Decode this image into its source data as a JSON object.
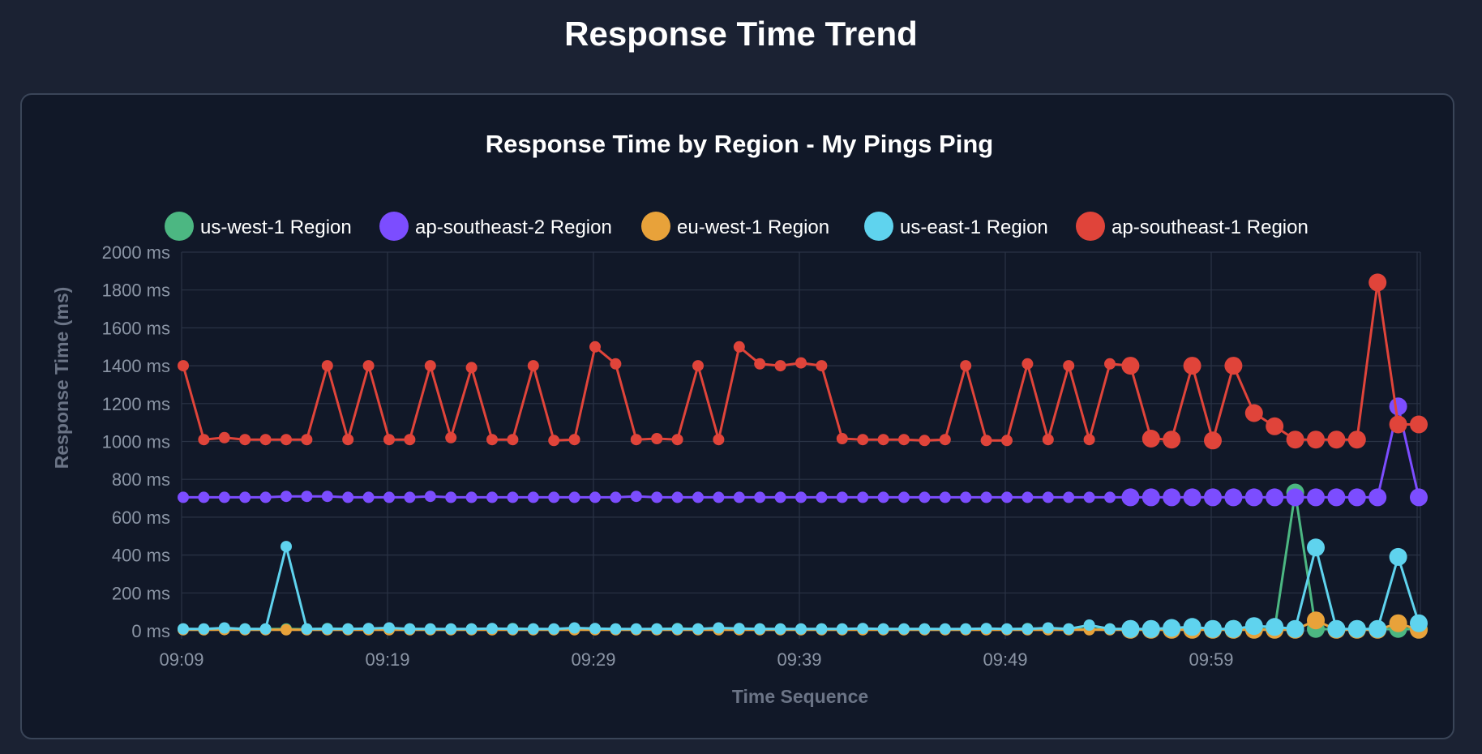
{
  "page": {
    "title": "Response Time Trend"
  },
  "chart_data": {
    "type": "line",
    "title": "Response Time by Region - My Pings Ping",
    "xlabel": "Time Sequence",
    "ylabel": "Response Time (ms)",
    "ylim": [
      0,
      2000
    ],
    "y_unit": "ms",
    "y_ticks": [
      0,
      200,
      400,
      600,
      800,
      1000,
      1200,
      1400,
      1600,
      1800,
      2000
    ],
    "y_tick_labels": [
      "0 ms",
      "200 ms",
      "400 ms",
      "600 ms",
      "800 ms",
      "1000 ms",
      "1200 ms",
      "1400 ms",
      "1600 ms",
      "1800 ms",
      "2000 ms"
    ],
    "x_tick_labels": [
      "09:09",
      "09:19",
      "09:29",
      "09:39",
      "09:49",
      "09:59"
    ],
    "grid": true,
    "legend": "top",
    "points_per_series": 61,
    "series": [
      {
        "name": "us-west-1 Region",
        "color": "#4cb782",
        "values": [
          10,
          8,
          8,
          10,
          9,
          10,
          8,
          12,
          10,
          9,
          8,
          10,
          9,
          8,
          10,
          9,
          12,
          10,
          8,
          9,
          10,
          9,
          8,
          10,
          12,
          10,
          9,
          8,
          10,
          9,
          8,
          10,
          9,
          8,
          10,
          9,
          10,
          8,
          9,
          10,
          8,
          12,
          10,
          9,
          8,
          10,
          9,
          8,
          10,
          9,
          8,
          10,
          9,
          8,
          730,
          10,
          8,
          9,
          8,
          10,
          8
        ]
      },
      {
        "name": "ap-southeast-2 Region",
        "color": "#7c4dff",
        "values": [
          705,
          705,
          705,
          705,
          705,
          710,
          710,
          710,
          705,
          705,
          705,
          705,
          710,
          705,
          705,
          705,
          705,
          705,
          705,
          705,
          705,
          705,
          710,
          705,
          705,
          705,
          705,
          705,
          705,
          705,
          705,
          705,
          705,
          705,
          705,
          705,
          705,
          705,
          705,
          705,
          705,
          705,
          705,
          705,
          705,
          705,
          705,
          705,
          705,
          705,
          705,
          705,
          705,
          705,
          705,
          705,
          705,
          705,
          705,
          1185,
          705
        ]
      },
      {
        "name": "eu-west-1 Region",
        "color": "#e8a23a",
        "values": [
          5,
          5,
          6,
          5,
          5,
          5,
          5,
          5,
          5,
          5,
          5,
          5,
          5,
          5,
          5,
          5,
          5,
          5,
          5,
          5,
          5,
          5,
          5,
          5,
          5,
          5,
          5,
          5,
          5,
          5,
          5,
          5,
          5,
          5,
          5,
          5,
          5,
          5,
          5,
          5,
          5,
          5,
          5,
          5,
          5,
          5,
          5,
          5,
          5,
          5,
          5,
          5,
          5,
          5,
          5,
          55,
          5,
          5,
          5,
          40,
          5
        ]
      },
      {
        "name": "us-east-1 Region",
        "color": "#5fd3ee",
        "values": [
          10,
          10,
          15,
          10,
          10,
          445,
          10,
          10,
          10,
          12,
          15,
          10,
          10,
          10,
          10,
          12,
          10,
          10,
          10,
          15,
          12,
          10,
          10,
          10,
          10,
          10,
          15,
          12,
          10,
          10,
          10,
          10,
          10,
          12,
          10,
          10,
          10,
          10,
          10,
          12,
          10,
          10,
          15,
          10,
          30,
          10,
          10,
          10,
          15,
          20,
          10,
          10,
          25,
          20,
          10,
          440,
          10,
          10,
          10,
          390,
          40
        ]
      },
      {
        "name": "ap-southeast-1 Region",
        "color": "#e0443a",
        "values": [
          1400,
          1010,
          1020,
          1010,
          1010,
          1010,
          1010,
          1400,
          1010,
          1400,
          1010,
          1010,
          1400,
          1020,
          1390,
          1010,
          1010,
          1400,
          1005,
          1010,
          1500,
          1410,
          1010,
          1015,
          1010,
          1400,
          1010,
          1500,
          1410,
          1400,
          1415,
          1400,
          1015,
          1010,
          1010,
          1010,
          1005,
          1010,
          1400,
          1005,
          1005,
          1410,
          1010,
          1400,
          1010,
          1410,
          1400,
          1015,
          1010,
          1400,
          1005,
          1400,
          1150,
          1080,
          1010,
          1010,
          1010,
          1010,
          1840,
          1090,
          1090
        ]
      }
    ]
  }
}
